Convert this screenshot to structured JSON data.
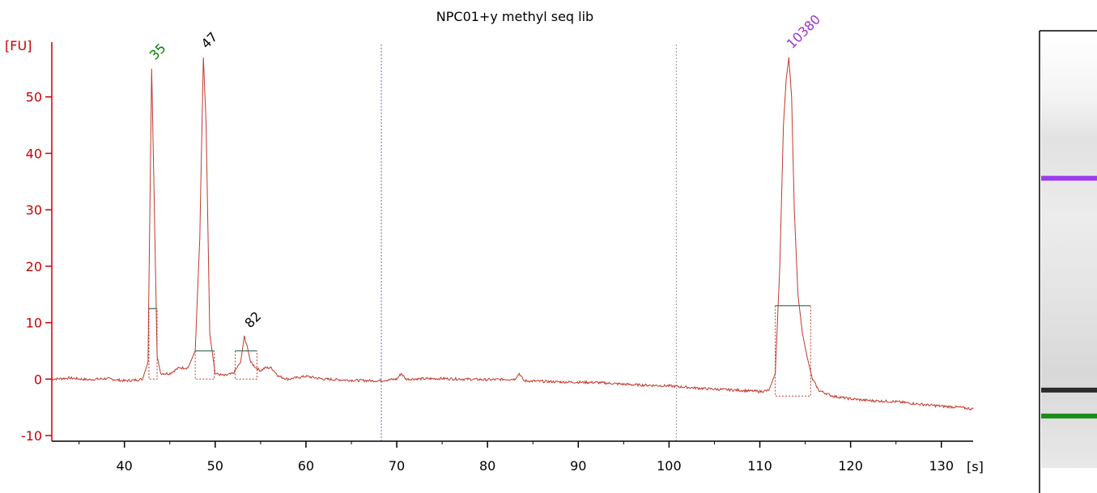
{
  "chart_data": {
    "type": "line",
    "title": "NPC01+y methyl seq lib",
    "ylabel": "[FU]",
    "xlabel": "[s]",
    "xlim": [
      32,
      133.5
    ],
    "ylim": [
      -11,
      60
    ],
    "x_ticks": [
      40,
      50,
      60,
      70,
      80,
      90,
      100,
      110,
      120,
      130
    ],
    "y_ticks": [
      -10,
      0,
      10,
      20,
      30,
      40,
      50
    ],
    "grid": false,
    "colors": {
      "trace": "#c0392b",
      "axis_y": "#cc0000",
      "marker_lower": "#22228a",
      "label_lower": "#008000",
      "label_upper": "#9933cc",
      "label_sample": "#000000",
      "baseline_tick": "#2e6b4f"
    },
    "series": [
      {
        "x": [
          32,
          34,
          36,
          38,
          40,
          41,
          42,
          42.6,
          43.0,
          43.3,
          43.6,
          44,
          45,
          46,
          47,
          47.8,
          48.3,
          48.7,
          49.0,
          49.4,
          50,
          51,
          52,
          52.8,
          53.2,
          53.5,
          53.9,
          54.5,
          55,
          55.5,
          56.2,
          57,
          58,
          60,
          62,
          65,
          68,
          70,
          70.5,
          71,
          75,
          80,
          83,
          83.5,
          84,
          88,
          92,
          96,
          100,
          104,
          108,
          110,
          111,
          111.7,
          112.2,
          112.6,
          112.9,
          113.2,
          113.5,
          113.8,
          114.2,
          114.7,
          115.2,
          115.8,
          116.5,
          118,
          120,
          122,
          125,
          128,
          130,
          132,
          133.5
        ],
        "y": [
          0.0,
          0.2,
          -0.1,
          0.1,
          -0.3,
          -0.2,
          0.0,
          3.0,
          55.0,
          30.0,
          4.0,
          1.0,
          1.0,
          2.0,
          2.0,
          5.0,
          25.0,
          57.0,
          45.0,
          8.0,
          1.0,
          0.6,
          1.0,
          3.0,
          7.5,
          6.0,
          3.0,
          2.0,
          1.5,
          2.0,
          2.0,
          0.5,
          0.0,
          0.5,
          0.0,
          -0.2,
          -0.3,
          0.0,
          1.0,
          0.0,
          0.1,
          -0.1,
          0.0,
          1.0,
          -0.3,
          -0.5,
          -0.6,
          -1.0,
          -1.2,
          -1.7,
          -2.0,
          -2.2,
          -2.0,
          1.0,
          20.0,
          45.0,
          53.0,
          57.0,
          50.0,
          30.0,
          15.0,
          8.0,
          4.0,
          0.0,
          -2.0,
          -3.0,
          -3.5,
          -3.8,
          -4.0,
          -4.5,
          -4.8,
          -5.0,
          -5.3
        ]
      }
    ],
    "peaks": [
      {
        "label": "35",
        "x": 43.0,
        "y": 55.0,
        "kind": "lower_marker",
        "label_color": "#008000"
      },
      {
        "label": "47",
        "x": 48.7,
        "y": 57.0,
        "kind": "sample",
        "label_color": "#000000"
      },
      {
        "label": "82",
        "x": 53.5,
        "y": 7.5,
        "kind": "sample",
        "label_color": "#000000"
      },
      {
        "label": "10380",
        "x": 113.2,
        "y": 57.0,
        "kind": "upper_marker",
        "label_color": "#9933cc"
      }
    ],
    "integration": [
      {
        "x1": 42.7,
        "x2": 43.6,
        "y": 12.5,
        "base_y": 0.0
      },
      {
        "x1": 47.8,
        "x2": 49.9,
        "y": 5.0,
        "base_y": 0.0
      },
      {
        "x1": 52.2,
        "x2": 54.6,
        "y": 5.0,
        "base_y": 0.0
      },
      {
        "x1": 111.7,
        "x2": 115.6,
        "y": 13.0,
        "base_y": -3.0
      }
    ],
    "vlines": [
      {
        "x": 68.3,
        "color": "#6666cc"
      },
      {
        "x": 100.8,
        "color": "#999999"
      }
    ],
    "gel": {
      "bands": [
        {
          "level": 0.33,
          "color": "#9933ee",
          "kind": "upper_marker"
        },
        {
          "level": 0.82,
          "color": "#222222",
          "kind": "sample"
        },
        {
          "level": 0.88,
          "color": "#118811",
          "kind": "lower_marker"
        }
      ]
    }
  }
}
